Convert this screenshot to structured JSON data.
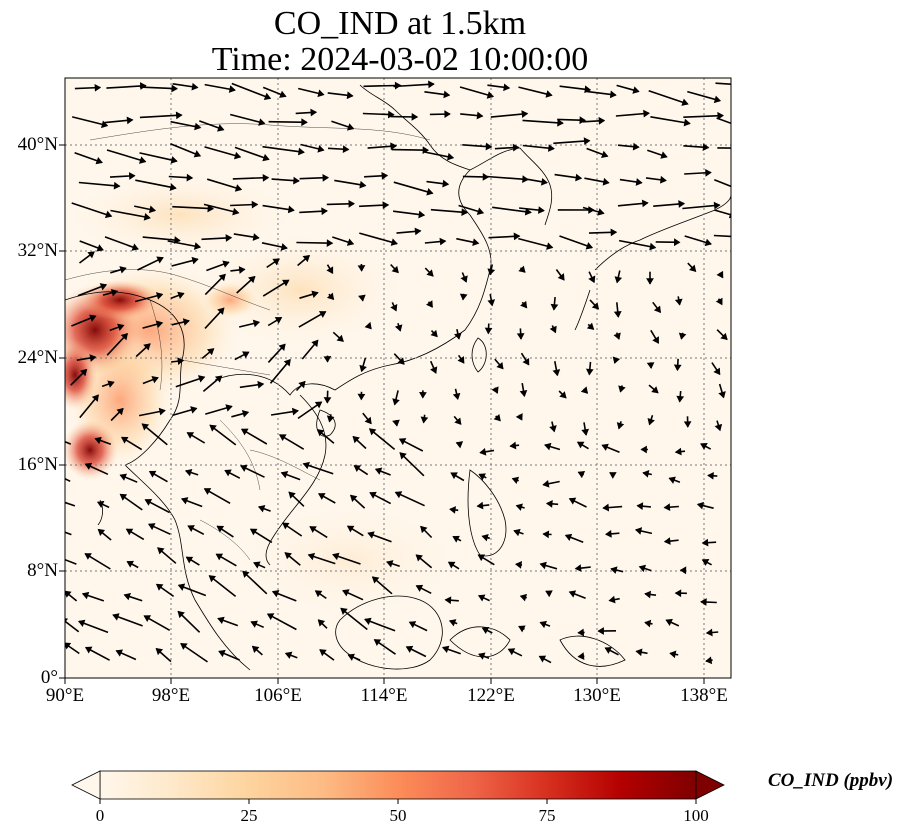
{
  "title": {
    "line1": "CO_IND at 1.5km",
    "line2": "Time: 2024-03-02 10:00:00"
  },
  "axes": {
    "lon_ticks": [
      "90°E",
      "98°E",
      "106°E",
      "114°E",
      "122°E",
      "130°E",
      "138°E"
    ],
    "lat_ticks": [
      "0°",
      "8°N",
      "16°N",
      "24°N",
      "32°N",
      "40°N"
    ],
    "lon_range": [
      90,
      140
    ],
    "lat_range": [
      0,
      45
    ],
    "gridlines": "dotted"
  },
  "colorbar": {
    "label": "CO_IND (ppbv)",
    "ticks": [
      "0",
      "25",
      "50",
      "75",
      "100"
    ],
    "range": [
      0,
      100
    ],
    "colormap": "OrRd",
    "extend": "both"
  },
  "map": {
    "features": [
      "coastlines",
      "borders",
      "wind-vectors"
    ],
    "high_concentration_region": "Myanmar / northeast India / Bangladesh",
    "colors": {
      "low": "#fff7ec",
      "mid": "#fc8d59",
      "high": "#7f0000"
    }
  }
}
